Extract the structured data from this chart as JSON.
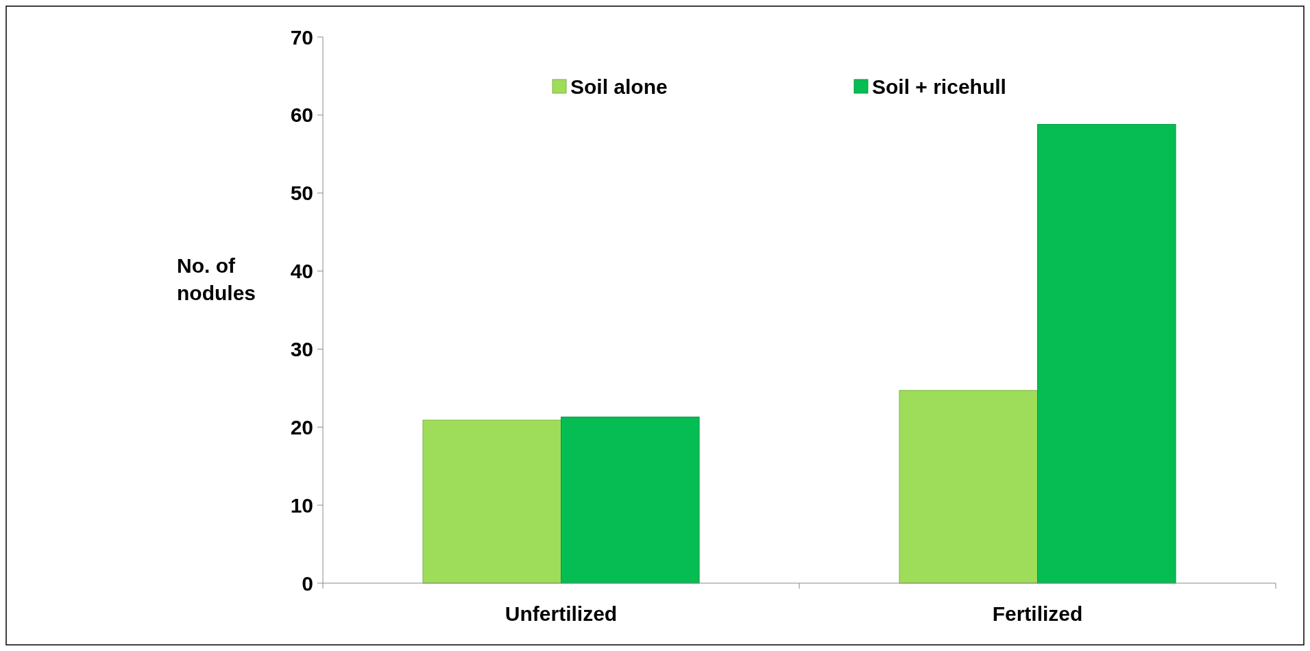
{
  "chart_data": {
    "type": "bar",
    "ylabel": "No. of nodules",
    "categories": [
      "Unfertilized",
      "Fertilized"
    ],
    "series": [
      {
        "name": "Soil alone",
        "color": "#9edd5a",
        "values": [
          20.9,
          24.7
        ]
      },
      {
        "name": "Soil + ricehull",
        "color": "#05bd52",
        "values": [
          21.3,
          58.8
        ]
      }
    ],
    "ylim": [
      0,
      70
    ],
    "yticks": [
      0,
      10,
      20,
      30,
      40,
      50,
      60,
      70
    ],
    "grid": false,
    "legend": "top"
  }
}
